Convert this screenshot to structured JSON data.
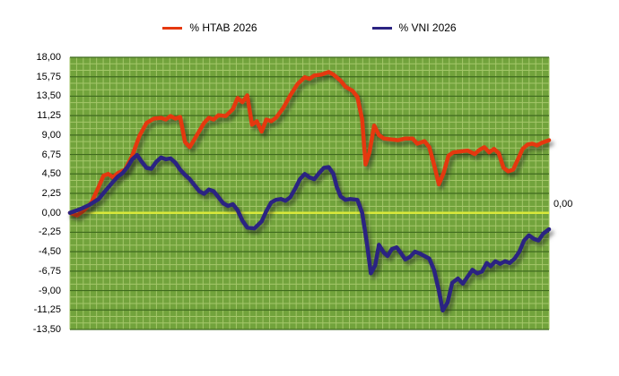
{
  "legend": {
    "items": [
      {
        "label": "% HTAB 2026",
        "color": "#e5380f"
      },
      {
        "label": "% VNI 2026",
        "color": "#2b2382"
      }
    ]
  },
  "annotations": {
    "zero_label": "0,00"
  },
  "chart_data": {
    "type": "line",
    "title": "",
    "xlabel": "",
    "ylabel": "",
    "ylim": [
      -13.5,
      18
    ],
    "grid": true,
    "legend_position": "top",
    "plot_bg": "#72a33c",
    "grid_minor_color": "#a4c76a",
    "grid_major_color": "#3f6a1e",
    "zero_line": {
      "value": 0,
      "color": "#d9e83a"
    },
    "ytick_labels": [
      "18,00",
      "15,75",
      "13,50",
      "11,25",
      "9,00",
      "6,75",
      "4,50",
      "2,25",
      "0,00",
      "-2,25",
      "-4,50",
      "-6,75",
      "-9,00",
      "-11,25",
      "-13,50"
    ],
    "ytick_values": [
      18,
      15.75,
      13.5,
      11.25,
      9,
      6.75,
      4.5,
      2.25,
      0,
      -2.25,
      -4.5,
      -6.75,
      -9,
      -11.25,
      -13.5
    ],
    "series": [
      {
        "name": "% HTAB 2026",
        "color": "#e5380f",
        "points": [
          [
            0,
            0
          ],
          [
            0.015,
            -0.3
          ],
          [
            0.03,
            0.3
          ],
          [
            0.045,
            1.2
          ],
          [
            0.06,
            3
          ],
          [
            0.07,
            4.3
          ],
          [
            0.08,
            4.5
          ],
          [
            0.09,
            4.1
          ],
          [
            0.1,
            4.6
          ],
          [
            0.115,
            5
          ],
          [
            0.13,
            6.6
          ],
          [
            0.145,
            8.9
          ],
          [
            0.16,
            10.4
          ],
          [
            0.175,
            10.9
          ],
          [
            0.19,
            11
          ],
          [
            0.2,
            10.8
          ],
          [
            0.21,
            11.2
          ],
          [
            0.22,
            10.9
          ],
          [
            0.23,
            11.1
          ],
          [
            0.24,
            8.2
          ],
          [
            0.25,
            7.6
          ],
          [
            0.265,
            9
          ],
          [
            0.28,
            10.4
          ],
          [
            0.29,
            11
          ],
          [
            0.3,
            10.8
          ],
          [
            0.31,
            11.3
          ],
          [
            0.325,
            11.2
          ],
          [
            0.34,
            12
          ],
          [
            0.35,
            13.3
          ],
          [
            0.36,
            12.8
          ],
          [
            0.37,
            13.6
          ],
          [
            0.38,
            10.2
          ],
          [
            0.39,
            10.6
          ],
          [
            0.4,
            9.4
          ],
          [
            0.41,
            10.8
          ],
          [
            0.42,
            10.6
          ],
          [
            0.43,
            11
          ],
          [
            0.445,
            12.1
          ],
          [
            0.46,
            13.6
          ],
          [
            0.475,
            14.9
          ],
          [
            0.49,
            15.7
          ],
          [
            0.5,
            15.5
          ],
          [
            0.51,
            15.9
          ],
          [
            0.525,
            16
          ],
          [
            0.54,
            16.3
          ],
          [
            0.55,
            16
          ],
          [
            0.565,
            15.3
          ],
          [
            0.575,
            14.6
          ],
          [
            0.59,
            14.1
          ],
          [
            0.6,
            13.4
          ],
          [
            0.61,
            10.8
          ],
          [
            0.617,
            5.6
          ],
          [
            0.625,
            7
          ],
          [
            0.635,
            10.1
          ],
          [
            0.645,
            9
          ],
          [
            0.655,
            8.6
          ],
          [
            0.67,
            8.5
          ],
          [
            0.685,
            8.4
          ],
          [
            0.7,
            8.6
          ],
          [
            0.715,
            8.6
          ],
          [
            0.725,
            8
          ],
          [
            0.74,
            8.3
          ],
          [
            0.75,
            7.6
          ],
          [
            0.76,
            5.6
          ],
          [
            0.77,
            3.3
          ],
          [
            0.78,
            4.6
          ],
          [
            0.79,
            6.6
          ],
          [
            0.8,
            7
          ],
          [
            0.815,
            7.1
          ],
          [
            0.83,
            7.2
          ],
          [
            0.845,
            6.8
          ],
          [
            0.855,
            7.3
          ],
          [
            0.865,
            7.6
          ],
          [
            0.875,
            7
          ],
          [
            0.885,
            7.4
          ],
          [
            0.895,
            6.9
          ],
          [
            0.905,
            5.2
          ],
          [
            0.915,
            4.8
          ],
          [
            0.925,
            5
          ],
          [
            0.935,
            6.2
          ],
          [
            0.945,
            7.4
          ],
          [
            0.955,
            7.9
          ],
          [
            0.965,
            8
          ],
          [
            0.975,
            7.8
          ],
          [
            0.985,
            8.1
          ],
          [
            1,
            8.4
          ]
        ]
      },
      {
        "name": "% VNI 2026",
        "color": "#2b2382",
        "points": [
          [
            0,
            0
          ],
          [
            0.02,
            0.4
          ],
          [
            0.04,
            0.9
          ],
          [
            0.06,
            1.6
          ],
          [
            0.075,
            2.6
          ],
          [
            0.09,
            3.6
          ],
          [
            0.1,
            4.2
          ],
          [
            0.11,
            4.6
          ],
          [
            0.12,
            5.3
          ],
          [
            0.13,
            6.2
          ],
          [
            0.14,
            6.7
          ],
          [
            0.15,
            5.9
          ],
          [
            0.16,
            5.2
          ],
          [
            0.17,
            5.1
          ],
          [
            0.18,
            5.9
          ],
          [
            0.19,
            6.4
          ],
          [
            0.2,
            6.2
          ],
          [
            0.21,
            6.3
          ],
          [
            0.22,
            5.8
          ],
          [
            0.23,
            5
          ],
          [
            0.24,
            4.4
          ],
          [
            0.25,
            3.9
          ],
          [
            0.26,
            3.2
          ],
          [
            0.27,
            2.5
          ],
          [
            0.28,
            2.2
          ],
          [
            0.29,
            2.7
          ],
          [
            0.3,
            2.5
          ],
          [
            0.31,
            1.8
          ],
          [
            0.32,
            1.1
          ],
          [
            0.33,
            0.8
          ],
          [
            0.34,
            1
          ],
          [
            0.35,
            0.3
          ],
          [
            0.36,
            -0.9
          ],
          [
            0.37,
            -1.7
          ],
          [
            0.385,
            -1.8
          ],
          [
            0.4,
            -1
          ],
          [
            0.41,
            0.2
          ],
          [
            0.42,
            1.2
          ],
          [
            0.43,
            1.5
          ],
          [
            0.44,
            1.6
          ],
          [
            0.45,
            1.4
          ],
          [
            0.46,
            1.8
          ],
          [
            0.47,
            2.8
          ],
          [
            0.48,
            3.9
          ],
          [
            0.49,
            4.5
          ],
          [
            0.5,
            4.1
          ],
          [
            0.51,
            3.9
          ],
          [
            0.52,
            4.6
          ],
          [
            0.53,
            5.2
          ],
          [
            0.54,
            5.3
          ],
          [
            0.55,
            4.5
          ],
          [
            0.557,
            3
          ],
          [
            0.565,
            1.9
          ],
          [
            0.575,
            1.5
          ],
          [
            0.585,
            1.6
          ],
          [
            0.6,
            1.5
          ],
          [
            0.61,
            0
          ],
          [
            0.62,
            -3.6
          ],
          [
            0.628,
            -7
          ],
          [
            0.637,
            -6.1
          ],
          [
            0.645,
            -3.7
          ],
          [
            0.655,
            -4.6
          ],
          [
            0.663,
            -5
          ],
          [
            0.672,
            -4.2
          ],
          [
            0.682,
            -4
          ],
          [
            0.69,
            -4.6
          ],
          [
            0.7,
            -5.4
          ],
          [
            0.71,
            -5.1
          ],
          [
            0.72,
            -4.5
          ],
          [
            0.73,
            -4.7
          ],
          [
            0.74,
            -5
          ],
          [
            0.75,
            -5.3
          ],
          [
            0.76,
            -6.6
          ],
          [
            0.77,
            -9
          ],
          [
            0.778,
            -11.3
          ],
          [
            0.788,
            -10.4
          ],
          [
            0.798,
            -8.1
          ],
          [
            0.81,
            -7.6
          ],
          [
            0.82,
            -8.2
          ],
          [
            0.83,
            -7.4
          ],
          [
            0.84,
            -6.6
          ],
          [
            0.85,
            -7
          ],
          [
            0.86,
            -6.8
          ],
          [
            0.87,
            -5.8
          ],
          [
            0.878,
            -6.2
          ],
          [
            0.888,
            -5.6
          ],
          [
            0.898,
            -5.9
          ],
          [
            0.908,
            -5.6
          ],
          [
            0.918,
            -5.8
          ],
          [
            0.928,
            -5.3
          ],
          [
            0.938,
            -4.5
          ],
          [
            0.948,
            -3.2
          ],
          [
            0.958,
            -2.6
          ],
          [
            0.968,
            -3
          ],
          [
            0.978,
            -3.2
          ],
          [
            0.988,
            -2.4
          ],
          [
            1,
            -1.9
          ]
        ]
      }
    ]
  }
}
